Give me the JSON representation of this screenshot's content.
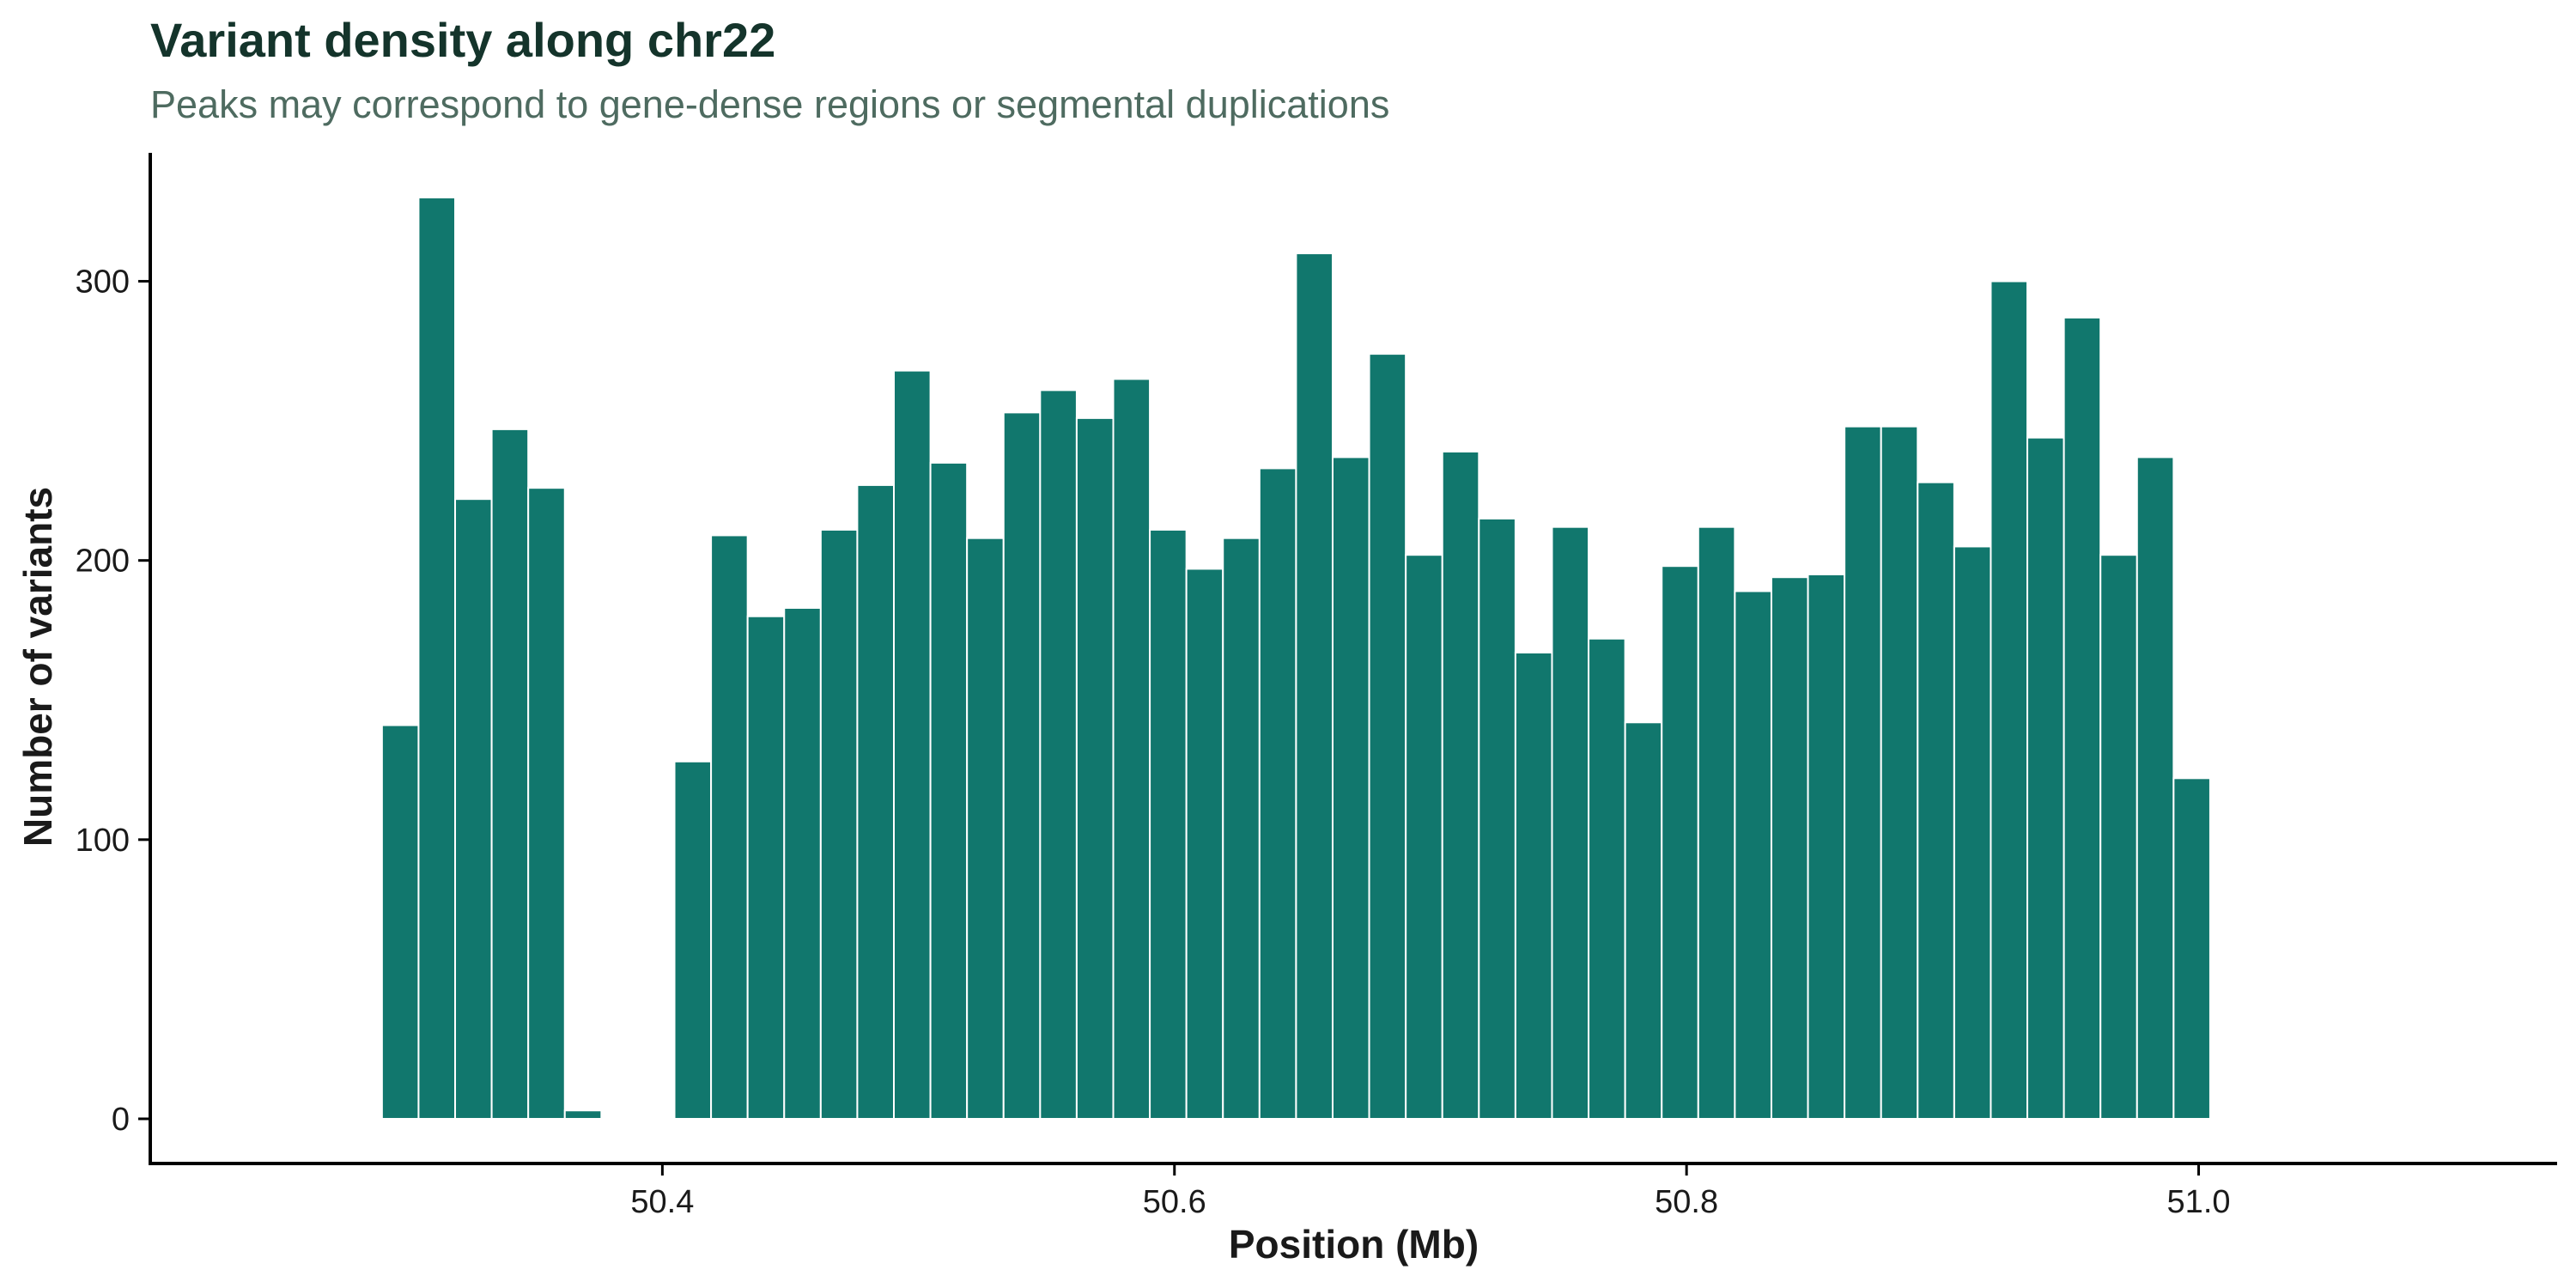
{
  "chart_data": {
    "type": "bar",
    "title": "Variant density along chr22",
    "subtitle": "Peaks may correspond to gene-dense regions or segmental duplications",
    "xlabel": "Position (Mb)",
    "ylabel": "Number of variants",
    "bin_width": 0.01428,
    "bin_start": 50.2905,
    "values": [
      141,
      330,
      222,
      247,
      226,
      3,
      0,
      0,
      128,
      209,
      180,
      183,
      211,
      227,
      268,
      235,
      208,
      253,
      261,
      251,
      265,
      211,
      197,
      208,
      233,
      310,
      237,
      274,
      202,
      239,
      215,
      167,
      212,
      172,
      142,
      198,
      212,
      189,
      194,
      195,
      248,
      248,
      228,
      205,
      300,
      244,
      287,
      202,
      237,
      122
    ],
    "xlim": [
      50.2,
      51.14
    ],
    "ylim": [
      -16,
      346
    ],
    "xticks": [
      50.4,
      50.6,
      50.8,
      51.0
    ],
    "xtick_labels": [
      "50.4",
      "50.6",
      "50.8",
      "51.0"
    ],
    "yticks": [
      0,
      100,
      200,
      300
    ],
    "ytick_labels": [
      "0",
      "100",
      "200",
      "300"
    ],
    "grid": false,
    "bar_color": "#11776d",
    "bar_outline": "#ffffff"
  }
}
